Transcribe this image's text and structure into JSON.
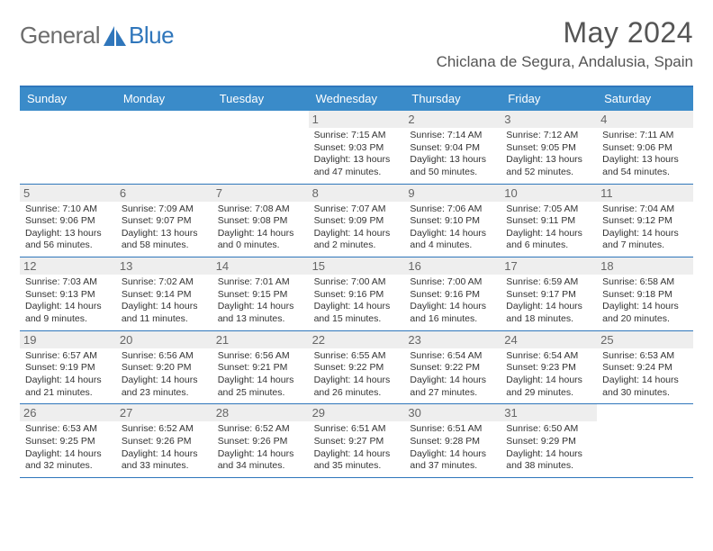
{
  "logo": {
    "text1": "General",
    "text2": "Blue"
  },
  "title": "May 2024",
  "location": "Chiclana de Segura, Andalusia, Spain",
  "colors": {
    "header_bar": "#3a8bc9",
    "header_border": "#2f76bb",
    "daynum_bg": "#eeeeee",
    "text": "#333333",
    "title_text": "#555555",
    "logo_gray": "#6d6d6d",
    "logo_blue": "#2f76bb",
    "bg": "#ffffff"
  },
  "weekdays": [
    "Sunday",
    "Monday",
    "Tuesday",
    "Wednesday",
    "Thursday",
    "Friday",
    "Saturday"
  ],
  "weeks": [
    [
      {
        "empty": true
      },
      {
        "empty": true
      },
      {
        "empty": true
      },
      {
        "day": "1",
        "sunrise": "7:15 AM",
        "sunset": "9:03 PM",
        "daylight": "13 hours and 47 minutes."
      },
      {
        "day": "2",
        "sunrise": "7:14 AM",
        "sunset": "9:04 PM",
        "daylight": "13 hours and 50 minutes."
      },
      {
        "day": "3",
        "sunrise": "7:12 AM",
        "sunset": "9:05 PM",
        "daylight": "13 hours and 52 minutes."
      },
      {
        "day": "4",
        "sunrise": "7:11 AM",
        "sunset": "9:06 PM",
        "daylight": "13 hours and 54 minutes."
      }
    ],
    [
      {
        "day": "5",
        "sunrise": "7:10 AM",
        "sunset": "9:06 PM",
        "daylight": "13 hours and 56 minutes."
      },
      {
        "day": "6",
        "sunrise": "7:09 AM",
        "sunset": "9:07 PM",
        "daylight": "13 hours and 58 minutes."
      },
      {
        "day": "7",
        "sunrise": "7:08 AM",
        "sunset": "9:08 PM",
        "daylight": "14 hours and 0 minutes."
      },
      {
        "day": "8",
        "sunrise": "7:07 AM",
        "sunset": "9:09 PM",
        "daylight": "14 hours and 2 minutes."
      },
      {
        "day": "9",
        "sunrise": "7:06 AM",
        "sunset": "9:10 PM",
        "daylight": "14 hours and 4 minutes."
      },
      {
        "day": "10",
        "sunrise": "7:05 AM",
        "sunset": "9:11 PM",
        "daylight": "14 hours and 6 minutes."
      },
      {
        "day": "11",
        "sunrise": "7:04 AM",
        "sunset": "9:12 PM",
        "daylight": "14 hours and 7 minutes."
      }
    ],
    [
      {
        "day": "12",
        "sunrise": "7:03 AM",
        "sunset": "9:13 PM",
        "daylight": "14 hours and 9 minutes."
      },
      {
        "day": "13",
        "sunrise": "7:02 AM",
        "sunset": "9:14 PM",
        "daylight": "14 hours and 11 minutes."
      },
      {
        "day": "14",
        "sunrise": "7:01 AM",
        "sunset": "9:15 PM",
        "daylight": "14 hours and 13 minutes."
      },
      {
        "day": "15",
        "sunrise": "7:00 AM",
        "sunset": "9:16 PM",
        "daylight": "14 hours and 15 minutes."
      },
      {
        "day": "16",
        "sunrise": "7:00 AM",
        "sunset": "9:16 PM",
        "daylight": "14 hours and 16 minutes."
      },
      {
        "day": "17",
        "sunrise": "6:59 AM",
        "sunset": "9:17 PM",
        "daylight": "14 hours and 18 minutes."
      },
      {
        "day": "18",
        "sunrise": "6:58 AM",
        "sunset": "9:18 PM",
        "daylight": "14 hours and 20 minutes."
      }
    ],
    [
      {
        "day": "19",
        "sunrise": "6:57 AM",
        "sunset": "9:19 PM",
        "daylight": "14 hours and 21 minutes."
      },
      {
        "day": "20",
        "sunrise": "6:56 AM",
        "sunset": "9:20 PM",
        "daylight": "14 hours and 23 minutes."
      },
      {
        "day": "21",
        "sunrise": "6:56 AM",
        "sunset": "9:21 PM",
        "daylight": "14 hours and 25 minutes."
      },
      {
        "day": "22",
        "sunrise": "6:55 AM",
        "sunset": "9:22 PM",
        "daylight": "14 hours and 26 minutes."
      },
      {
        "day": "23",
        "sunrise": "6:54 AM",
        "sunset": "9:22 PM",
        "daylight": "14 hours and 27 minutes."
      },
      {
        "day": "24",
        "sunrise": "6:54 AM",
        "sunset": "9:23 PM",
        "daylight": "14 hours and 29 minutes."
      },
      {
        "day": "25",
        "sunrise": "6:53 AM",
        "sunset": "9:24 PM",
        "daylight": "14 hours and 30 minutes."
      }
    ],
    [
      {
        "day": "26",
        "sunrise": "6:53 AM",
        "sunset": "9:25 PM",
        "daylight": "14 hours and 32 minutes."
      },
      {
        "day": "27",
        "sunrise": "6:52 AM",
        "sunset": "9:26 PM",
        "daylight": "14 hours and 33 minutes."
      },
      {
        "day": "28",
        "sunrise": "6:52 AM",
        "sunset": "9:26 PM",
        "daylight": "14 hours and 34 minutes."
      },
      {
        "day": "29",
        "sunrise": "6:51 AM",
        "sunset": "9:27 PM",
        "daylight": "14 hours and 35 minutes."
      },
      {
        "day": "30",
        "sunrise": "6:51 AM",
        "sunset": "9:28 PM",
        "daylight": "14 hours and 37 minutes."
      },
      {
        "day": "31",
        "sunrise": "6:50 AM",
        "sunset": "9:29 PM",
        "daylight": "14 hours and 38 minutes."
      },
      {
        "empty": true
      }
    ]
  ]
}
